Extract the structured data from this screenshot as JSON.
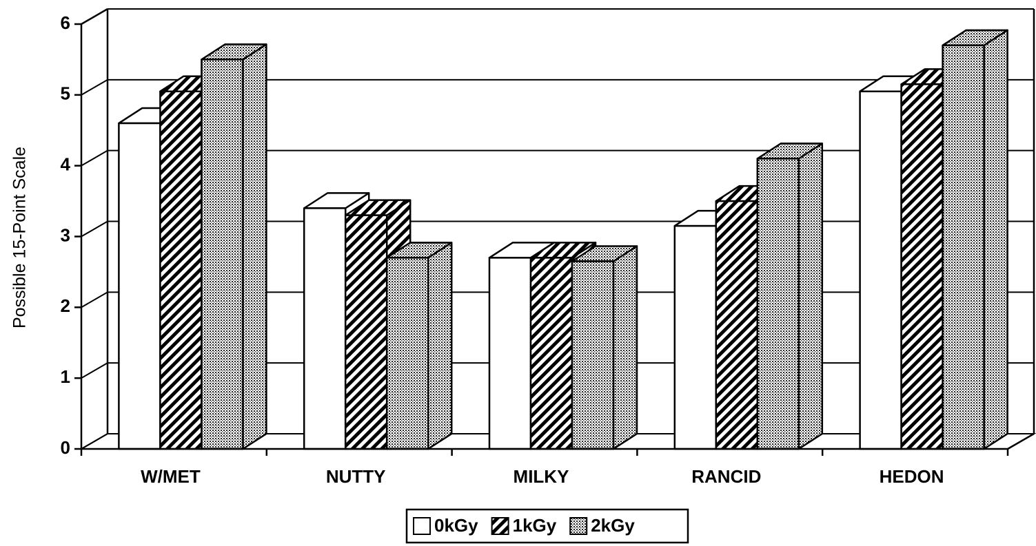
{
  "chart_data": {
    "type": "bar3d",
    "y_label": "Possible 15-Point Scale",
    "categories": [
      "W/MET",
      "NUTTY",
      "MILKY",
      "RANCID",
      "HEDON"
    ],
    "series": [
      {
        "name": "0kGy",
        "color": "#ffffff",
        "pattern": "none",
        "values": [
          4.6,
          3.4,
          2.7,
          3.15,
          5.05
        ]
      },
      {
        "name": "1kGy",
        "color": "#ffffff",
        "pattern": "hatch",
        "values": [
          5.05,
          3.3,
          2.7,
          3.5,
          5.15
        ]
      },
      {
        "name": "2kGy",
        "color": "#ffffff",
        "pattern": "dots",
        "values": [
          5.5,
          2.7,
          2.65,
          4.1,
          5.7
        ]
      }
    ],
    "ylim": [
      0,
      6
    ],
    "yticks": [
      0,
      1,
      2,
      3,
      4,
      5,
      6
    ],
    "grid": true,
    "legend": "bottom"
  }
}
